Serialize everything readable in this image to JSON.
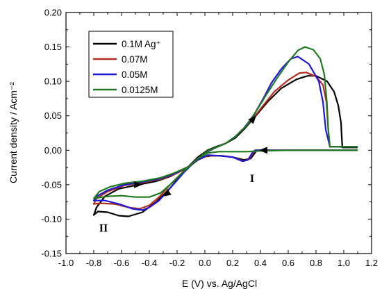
{
  "chart_data": {
    "type": "line",
    "xlabel": "E (V) vs. Ag/AgCl",
    "ylabel": "Current density / Acm⁻²",
    "xlim": [
      -1.0,
      1.2
    ],
    "ylim": [
      -0.15,
      0.2
    ],
    "xticks": [
      "-1.0",
      "-0.8",
      "-0.6",
      "-0.4",
      "-0.2",
      "0.0",
      "0.2",
      "0.4",
      "0.6",
      "0.8",
      "1.0",
      "1.2"
    ],
    "yticks": [
      "-0.15",
      "-0.10",
      "-0.05",
      "0.00",
      "0.05",
      "0.10",
      "0.15",
      "0.20"
    ],
    "xtick_values": [
      -1.0,
      -0.8,
      -0.6,
      -0.4,
      -0.2,
      0.0,
      0.2,
      0.4,
      0.6,
      0.8,
      1.0,
      1.2
    ],
    "ytick_values": [
      -0.15,
      -0.1,
      -0.05,
      0.0,
      0.05,
      0.1,
      0.15,
      0.2
    ],
    "grid": false,
    "legend_position": "top-left",
    "annotations": [
      {
        "text": "I",
        "x": 0.34,
        "y": -0.04
      },
      {
        "text": "II",
        "x": -0.73,
        "y": -0.112
      }
    ],
    "arrows": [
      {
        "x": 0.35,
        "y": 0.046,
        "direction": "up-right"
      },
      {
        "x": 0.42,
        "y": 0.0,
        "direction": "left"
      },
      {
        "x": -0.28,
        "y": -0.064,
        "direction": "down-left"
      },
      {
        "x": -0.48,
        "y": -0.05,
        "direction": "right"
      }
    ],
    "series": [
      {
        "name": "0.1M Ag⁺",
        "color": "#000000",
        "points": [
          [
            1.1,
            0.004
          ],
          [
            0.99,
            0.004
          ],
          [
            0.985,
            0.02
          ],
          [
            0.98,
            0.04
          ],
          [
            0.96,
            0.065
          ],
          [
            0.93,
            0.085
          ],
          [
            0.88,
            0.1
          ],
          [
            0.8,
            0.108
          ],
          [
            0.74,
            0.108
          ],
          [
            0.66,
            0.103
          ],
          [
            0.55,
            0.09
          ],
          [
            0.45,
            0.07
          ],
          [
            0.35,
            0.046
          ],
          [
            0.28,
            0.03
          ],
          [
            0.22,
            0.018
          ],
          [
            0.15,
            0.01
          ],
          [
            0.08,
            0.005
          ],
          [
            0.02,
            0.0
          ],
          [
            -0.05,
            -0.01
          ],
          [
            -0.15,
            -0.03
          ],
          [
            -0.25,
            -0.055
          ],
          [
            -0.35,
            -0.075
          ],
          [
            -0.45,
            -0.09
          ],
          [
            -0.55,
            -0.096
          ],
          [
            -0.62,
            -0.095
          ],
          [
            -0.7,
            -0.09
          ],
          [
            -0.77,
            -0.089
          ],
          [
            -0.8,
            -0.094
          ],
          [
            -0.78,
            -0.083
          ],
          [
            -0.72,
            -0.067
          ],
          [
            -0.62,
            -0.056
          ],
          [
            -0.48,
            -0.05
          ],
          [
            -0.35,
            -0.045
          ],
          [
            -0.25,
            -0.038
          ],
          [
            -0.15,
            -0.028
          ],
          [
            -0.08,
            -0.018
          ],
          [
            -0.02,
            -0.01
          ],
          [
            0.05,
            -0.008
          ],
          [
            0.12,
            -0.008
          ],
          [
            0.2,
            -0.01
          ],
          [
            0.28,
            -0.014
          ],
          [
            0.33,
            -0.012
          ],
          [
            0.36,
            -0.004
          ],
          [
            0.37,
            0.0
          ],
          [
            0.4,
            0.0
          ],
          [
            0.7,
            0.0
          ],
          [
            1.0,
            0.0
          ],
          [
            1.1,
            0.0
          ]
        ]
      },
      {
        "name": "0.07M",
        "color": "#b22b1d",
        "points": [
          [
            1.1,
            0.005
          ],
          [
            0.9,
            0.005
          ],
          [
            0.888,
            0.03
          ],
          [
            0.875,
            0.07
          ],
          [
            0.85,
            0.095
          ],
          [
            0.8,
            0.107
          ],
          [
            0.73,
            0.113
          ],
          [
            0.68,
            0.112
          ],
          [
            0.6,
            0.102
          ],
          [
            0.5,
            0.085
          ],
          [
            0.42,
            0.065
          ],
          [
            0.35,
            0.047
          ],
          [
            0.28,
            0.032
          ],
          [
            0.22,
            0.02
          ],
          [
            0.15,
            0.01
          ],
          [
            0.08,
            0.004
          ],
          [
            0.02,
            -0.002
          ],
          [
            -0.05,
            -0.012
          ],
          [
            -0.15,
            -0.03
          ],
          [
            -0.25,
            -0.05
          ],
          [
            -0.33,
            -0.068
          ],
          [
            -0.4,
            -0.08
          ],
          [
            -0.47,
            -0.085
          ],
          [
            -0.55,
            -0.083
          ],
          [
            -0.65,
            -0.078
          ],
          [
            -0.75,
            -0.077
          ],
          [
            -0.8,
            -0.078
          ],
          [
            -0.78,
            -0.07
          ],
          [
            -0.7,
            -0.06
          ],
          [
            -0.58,
            -0.051
          ],
          [
            -0.45,
            -0.047
          ],
          [
            -0.32,
            -0.042
          ],
          [
            -0.22,
            -0.035
          ],
          [
            -0.12,
            -0.025
          ],
          [
            -0.05,
            -0.014
          ],
          [
            0.02,
            -0.008
          ],
          [
            0.1,
            -0.008
          ],
          [
            0.2,
            -0.01
          ],
          [
            0.28,
            -0.016
          ],
          [
            0.32,
            -0.012
          ],
          [
            0.35,
            -0.003
          ],
          [
            0.37,
            0.0
          ],
          [
            0.6,
            0.0
          ],
          [
            0.9,
            0.0
          ],
          [
            1.1,
            0.0
          ]
        ]
      },
      {
        "name": "0.05M",
        "color": "#1f17d8",
        "points": [
          [
            1.1,
            0.005
          ],
          [
            0.9,
            0.005
          ],
          [
            0.87,
            0.03
          ],
          [
            0.85,
            0.07
          ],
          [
            0.82,
            0.1
          ],
          [
            0.75,
            0.125
          ],
          [
            0.67,
            0.136
          ],
          [
            0.62,
            0.133
          ],
          [
            0.55,
            0.118
          ],
          [
            0.48,
            0.098
          ],
          [
            0.42,
            0.075
          ],
          [
            0.35,
            0.05
          ],
          [
            0.28,
            0.032
          ],
          [
            0.22,
            0.02
          ],
          [
            0.15,
            0.01
          ],
          [
            0.08,
            0.004
          ],
          [
            0.02,
            -0.002
          ],
          [
            -0.05,
            -0.012
          ],
          [
            -0.15,
            -0.032
          ],
          [
            -0.25,
            -0.055
          ],
          [
            -0.33,
            -0.073
          ],
          [
            -0.4,
            -0.083
          ],
          [
            -0.45,
            -0.087
          ],
          [
            -0.52,
            -0.085
          ],
          [
            -0.62,
            -0.078
          ],
          [
            -0.72,
            -0.073
          ],
          [
            -0.8,
            -0.073
          ],
          [
            -0.78,
            -0.067
          ],
          [
            -0.7,
            -0.058
          ],
          [
            -0.58,
            -0.05
          ],
          [
            -0.45,
            -0.046
          ],
          [
            -0.32,
            -0.041
          ],
          [
            -0.22,
            -0.034
          ],
          [
            -0.12,
            -0.024
          ],
          [
            -0.05,
            -0.014
          ],
          [
            0.02,
            -0.007
          ],
          [
            0.1,
            -0.008
          ],
          [
            0.2,
            -0.01
          ],
          [
            0.27,
            -0.016
          ],
          [
            0.31,
            -0.014
          ],
          [
            0.34,
            -0.004
          ],
          [
            0.36,
            0.0
          ],
          [
            0.6,
            0.0
          ],
          [
            0.9,
            0.0
          ],
          [
            1.1,
            0.0
          ]
        ]
      },
      {
        "name": "0.0125M",
        "color": "#1f7a1f",
        "points": [
          [
            1.1,
            0.005
          ],
          [
            0.9,
            0.005
          ],
          [
            0.888,
            0.03
          ],
          [
            0.878,
            0.07
          ],
          [
            0.86,
            0.11
          ],
          [
            0.83,
            0.133
          ],
          [
            0.78,
            0.146
          ],
          [
            0.72,
            0.15
          ],
          [
            0.67,
            0.145
          ],
          [
            0.6,
            0.128
          ],
          [
            0.52,
            0.105
          ],
          [
            0.44,
            0.08
          ],
          [
            0.37,
            0.057
          ],
          [
            0.3,
            0.036
          ],
          [
            0.22,
            0.02
          ],
          [
            0.15,
            0.01
          ],
          [
            0.08,
            0.004
          ],
          [
            0.02,
            -0.001
          ],
          [
            -0.05,
            -0.012
          ],
          [
            -0.15,
            -0.03
          ],
          [
            -0.25,
            -0.05
          ],
          [
            -0.32,
            -0.062
          ],
          [
            -0.4,
            -0.068
          ],
          [
            -0.5,
            -0.068
          ],
          [
            -0.6,
            -0.066
          ],
          [
            -0.7,
            -0.067
          ],
          [
            -0.8,
            -0.07
          ],
          [
            -0.76,
            -0.06
          ],
          [
            -0.68,
            -0.053
          ],
          [
            -0.58,
            -0.048
          ],
          [
            -0.45,
            -0.045
          ],
          [
            -0.32,
            -0.04
          ],
          [
            -0.22,
            -0.033
          ],
          [
            -0.12,
            -0.024
          ],
          [
            -0.05,
            -0.012
          ],
          [
            0.02,
            -0.004
          ],
          [
            0.1,
            -0.002
          ],
          [
            0.2,
            -0.002
          ],
          [
            0.3,
            -0.002
          ],
          [
            0.4,
            -0.001
          ],
          [
            0.6,
            0.0
          ],
          [
            0.9,
            0.0
          ],
          [
            1.1,
            0.0
          ]
        ]
      }
    ]
  }
}
